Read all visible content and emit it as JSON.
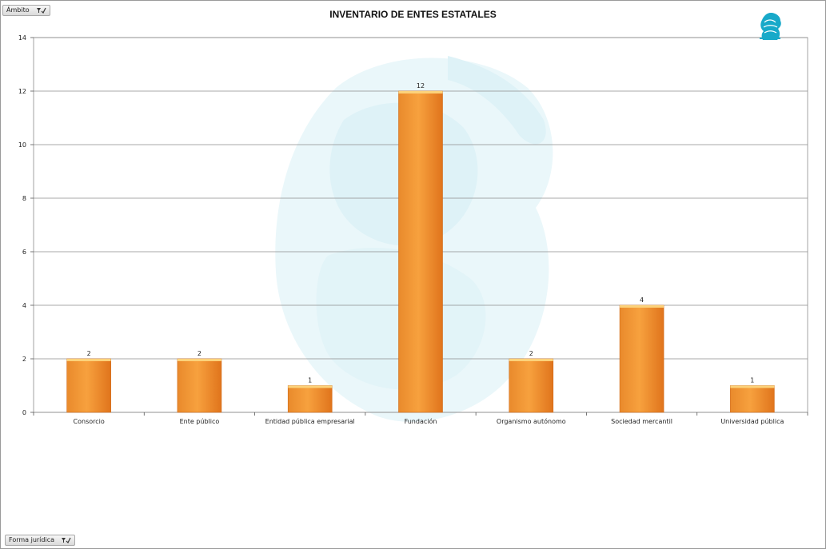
{
  "filters": {
    "top_label": "Ámbito",
    "bottom_label": "Forma jurídica"
  },
  "chart_data": {
    "type": "bar",
    "title": "INVENTARIO DE ENTES ESTATALES",
    "xlabel": "",
    "ylabel": "",
    "categories": [
      "Consorcio",
      "Ente público",
      "Entidad pública empresarial",
      "Fundación",
      "Organismo autónomo",
      "Sociedad mercantil",
      "Universidad pública"
    ],
    "values": [
      2,
      2,
      1,
      12,
      2,
      4,
      1
    ],
    "ylim": [
      0,
      14
    ],
    "yticks": [
      0,
      2,
      4,
      6,
      8,
      10,
      12,
      14
    ],
    "grid": true,
    "data_labels": true,
    "legend": "none",
    "colors": {
      "bar_light": "#F7A13E",
      "bar_dark": "#E0741C",
      "bar_top": "#FCD27A",
      "grid": "#8c8c8c",
      "watermark": "#e3f4f8"
    }
  }
}
